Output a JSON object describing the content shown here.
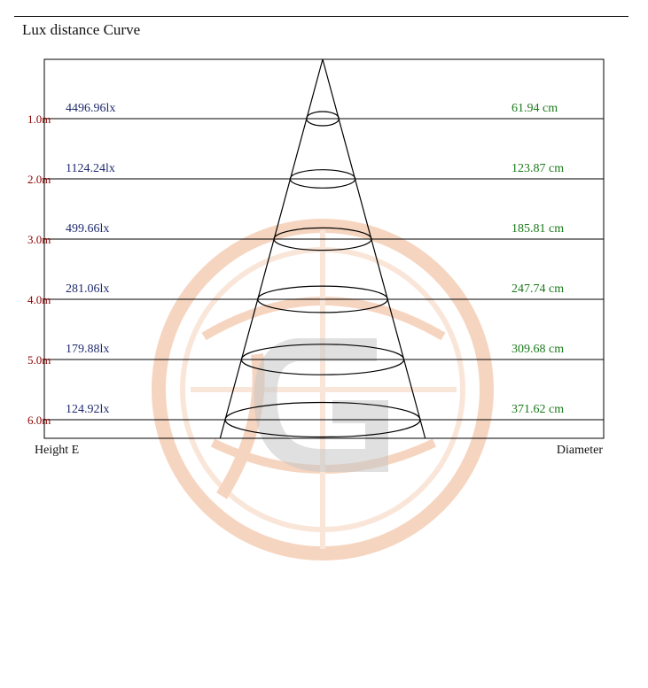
{
  "chart_data": {
    "type": "beam-angle",
    "title": "Lux distance Curve",
    "xlabel_left": "Height  E",
    "xlabel_right": "Diameter",
    "height_unit": "m",
    "rows": [
      {
        "height": 1.0,
        "height_label": "1.0m",
        "lux": "4496.96lx",
        "diameter": "61.94 cm",
        "diameter_cm": 61.94
      },
      {
        "height": 2.0,
        "height_label": "2.0m",
        "lux": "1124.24lx",
        "diameter": "123.87 cm",
        "diameter_cm": 123.87
      },
      {
        "height": 3.0,
        "height_label": "3.0m",
        "lux": "499.66lx",
        "diameter": "185.81 cm",
        "diameter_cm": 185.81
      },
      {
        "height": 4.0,
        "height_label": "4.0m",
        "lux": "281.06lx",
        "diameter": "247.74 cm",
        "diameter_cm": 247.74
      },
      {
        "height": 5.0,
        "height_label": "5.0m",
        "lux": "179.88lx",
        "diameter": "309.68 cm",
        "diameter_cm": 309.68
      },
      {
        "height": 6.0,
        "height_label": "6.0m",
        "lux": "124.92lx",
        "diameter": "371.62 cm",
        "diameter_cm": 371.62
      }
    ],
    "colors": {
      "height_label": "#8b0000",
      "lux_label": "#1f2a6e",
      "diameter_label": "#1a7a1a",
      "lines": "#000000",
      "watermark": "#f2c9ad"
    }
  }
}
